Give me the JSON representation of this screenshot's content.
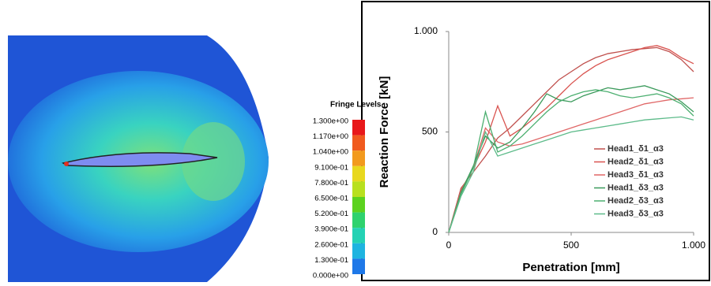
{
  "fringe_levels": {
    "title": "Fringe Levels",
    "labels": [
      "1.300e+00",
      "1.170e+00",
      "1.040e+00",
      "9.100e-01",
      "7.800e-01",
      "6.500e-01",
      "5.200e-01",
      "3.900e-01",
      "2.600e-01",
      "1.300e-01",
      "0.000e+00"
    ]
  },
  "chart_data": {
    "type": "line",
    "x_label": "Penetration [mm]",
    "y_label": "Reaction Force [kN]",
    "x": [
      0,
      50,
      100,
      150,
      200,
      250,
      300,
      350,
      400,
      450,
      500,
      550,
      600,
      650,
      700,
      750,
      800,
      850,
      900,
      950,
      1000
    ],
    "xlim": [
      0,
      1000
    ],
    "ylim": [
      0,
      1000
    ],
    "xticks": [
      0,
      500,
      {
        "value": 1000,
        "label": "1.000"
      }
    ],
    "yticks": [
      0,
      500,
      {
        "value": 1000,
        "label": "1.000"
      }
    ],
    "grid": false,
    "legend": "lower right",
    "series": [
      {
        "name": "Head1_δ1_α3",
        "color": "#c0504d",
        "values": [
          0,
          220,
          300,
          380,
          470,
          520,
          580,
          640,
          700,
          760,
          800,
          840,
          870,
          890,
          900,
          910,
          915,
          920,
          900,
          860,
          800
        ]
      },
      {
        "name": "Head2_δ1_α3",
        "color": "#d9534f",
        "values": [
          0,
          200,
          320,
          450,
          630,
          480,
          520,
          570,
          620,
          680,
          740,
          790,
          830,
          860,
          880,
          900,
          920,
          930,
          910,
          870,
          840
        ]
      },
      {
        "name": "Head3_δ1_α3",
        "color": "#e06666",
        "values": [
          0,
          210,
          320,
          520,
          450,
          430,
          440,
          460,
          480,
          500,
          520,
          540,
          560,
          580,
          600,
          620,
          640,
          650,
          660,
          665,
          670
        ]
      },
      {
        "name": "Head1_δ3_α3",
        "color": "#3a9a5b",
        "values": [
          0,
          200,
          330,
          480,
          420,
          450,
          520,
          600,
          690,
          660,
          650,
          680,
          700,
          720,
          710,
          720,
          730,
          710,
          690,
          650,
          600
        ]
      },
      {
        "name": "Head2_δ3_α3",
        "color": "#4caf70",
        "values": [
          0,
          190,
          320,
          600,
          400,
          430,
          480,
          540,
          600,
          650,
          680,
          700,
          710,
          700,
          680,
          670,
          680,
          690,
          670,
          640,
          580
        ]
      },
      {
        "name": "Head3_δ3_α3",
        "color": "#5dbb8a",
        "values": [
          0,
          180,
          300,
          500,
          380,
          400,
          420,
          440,
          460,
          480,
          500,
          510,
          520,
          530,
          540,
          550,
          560,
          565,
          570,
          575,
          560
        ]
      }
    ]
  }
}
